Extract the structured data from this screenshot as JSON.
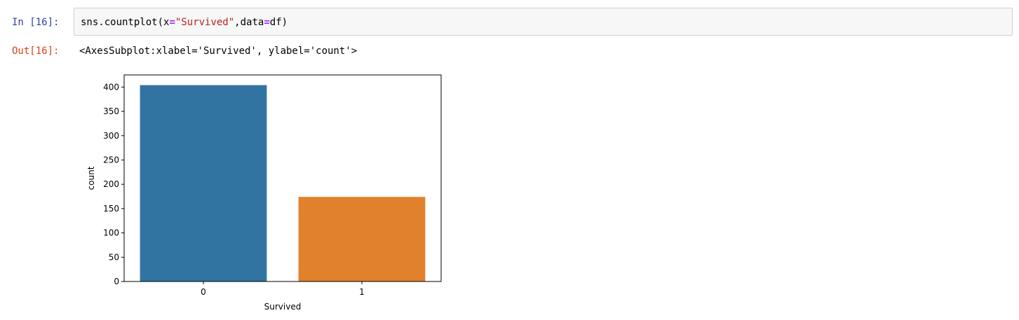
{
  "cell": {
    "in_prompt": "In [16]:",
    "out_prompt": "Out[16]:",
    "code": {
      "func": "sns.countplot(x",
      "eq1": "=",
      "str": "\"Survived\"",
      "comma": ",data",
      "eq2": "=",
      "tail": "df)"
    },
    "output_text": "<AxesSubplot:xlabel='Survived', ylabel='count'>"
  },
  "chart_data": {
    "type": "bar",
    "categories": [
      "0",
      "1"
    ],
    "values": [
      404,
      174
    ],
    "colors": [
      "#3274A1",
      "#E1812C"
    ],
    "xlabel": "Survived",
    "ylabel": "count",
    "ylim": [
      0,
      425
    ],
    "yticks": [
      0,
      50,
      100,
      150,
      200,
      250,
      300,
      350,
      400
    ],
    "grid": false
  }
}
